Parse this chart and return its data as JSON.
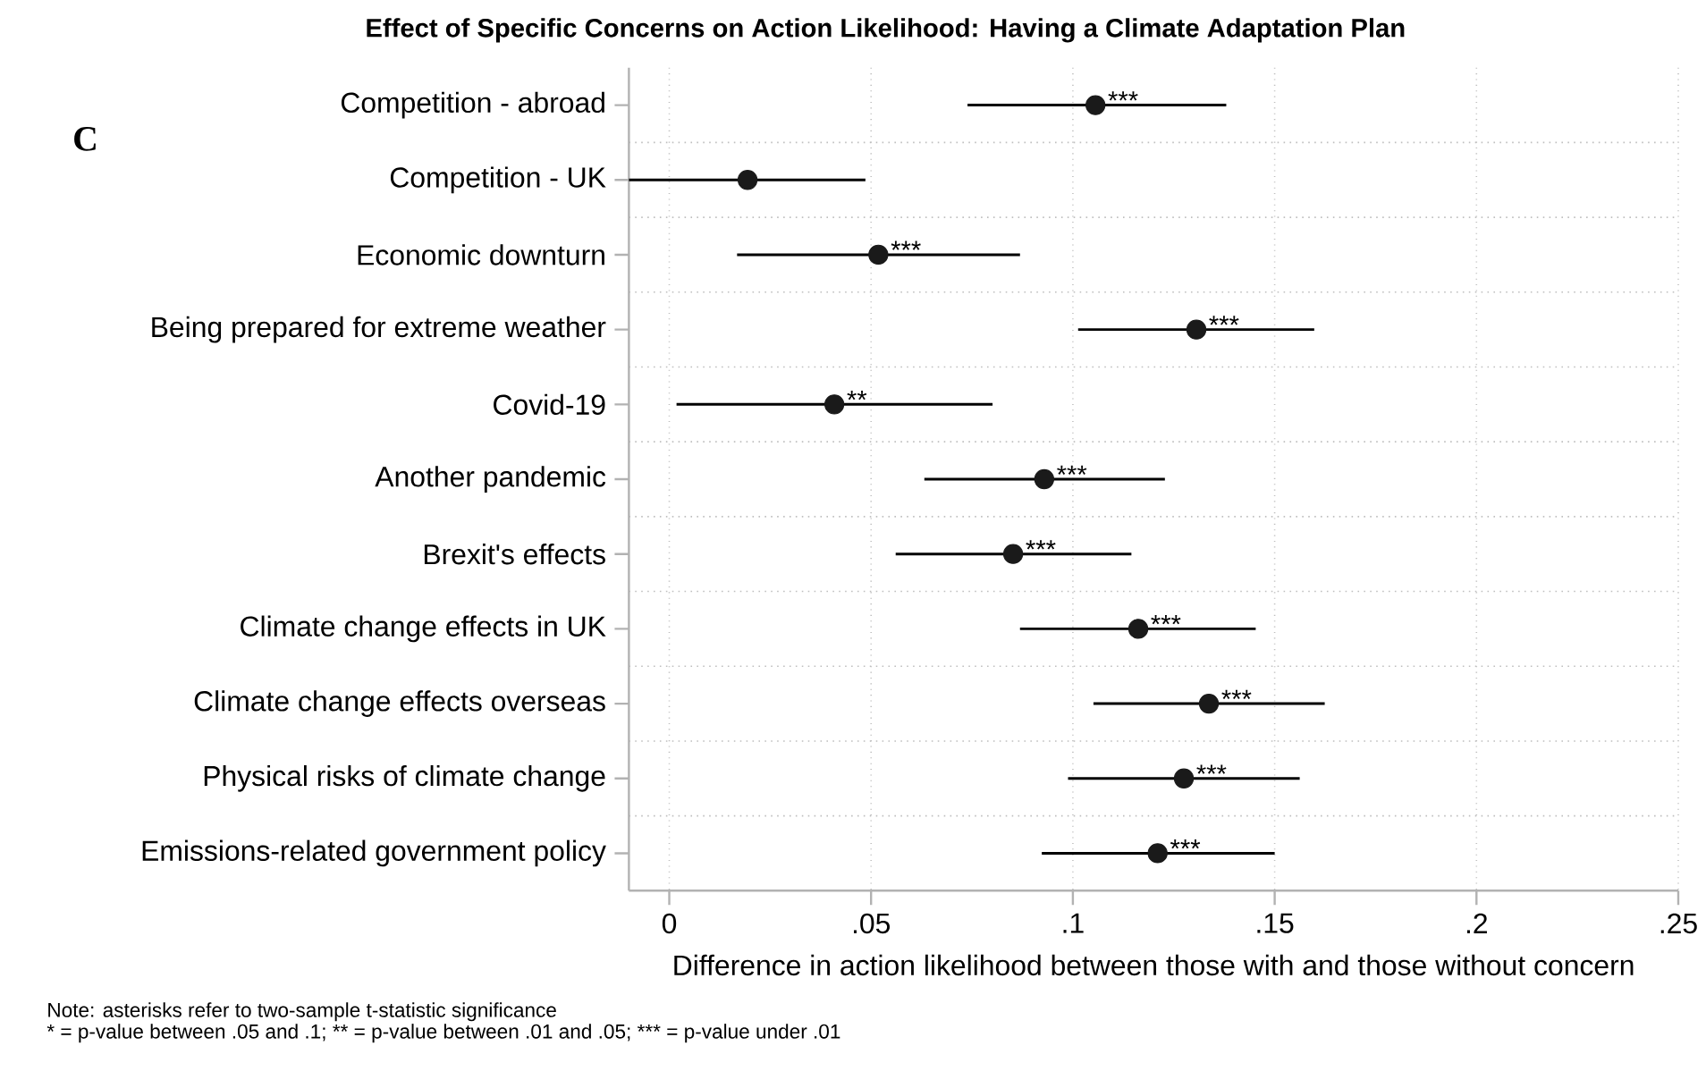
{
  "chart_data": {
    "type": "scatter",
    "orientation": "horizontal",
    "title": "Effect of Specific Concerns on Action Likelihood: Having a Climate Adaptation Plan",
    "xlabel": "Difference in action likelihood between those with and those without concern",
    "categories": [
      "Competition - abroad",
      "Competition - UK",
      "Economic downturn",
      "Being prepared for extreme weather",
      "Covid-19",
      "Another pandemic",
      "Brexit's effects",
      "Climate change effects in UK",
      "Climate change effects overseas",
      "Physical risks of climate change",
      "Emissions-related government policy"
    ],
    "values": [
      0.1056,
      0.0194,
      0.0518,
      0.1306,
      0.0409,
      0.0929,
      0.0852,
      0.1162,
      0.1337,
      0.1275,
      0.121
    ],
    "errors": [
      [
        0.0739,
        0.138
      ],
      [
        -0.01,
        0.0486
      ],
      [
        0.0168,
        0.0869
      ],
      [
        0.1013,
        0.1598
      ],
      [
        0.0018,
        0.0801
      ],
      [
        0.0632,
        0.1228
      ],
      [
        0.0561,
        0.1145
      ],
      [
        0.0869,
        0.1453
      ],
      [
        0.1051,
        0.1624
      ],
      [
        0.0988,
        0.1562
      ],
      [
        0.0923,
        0.15
      ]
    ],
    "value_labels": [
      "***",
      null,
      "***",
      "***",
      "**",
      "***",
      "***",
      "***",
      "***",
      "***",
      "***"
    ],
    "color": "#1a1a1a",
    "marker": "circle",
    "xlim": [
      -0.01,
      0.25
    ],
    "xticks": [
      0,
      {
        "value": 0.05,
        "label": ".05"
      },
      {
        "value": 0.1,
        "label": ".1"
      },
      {
        "value": 0.15,
        "label": ".15"
      },
      {
        "value": 0.2,
        "label": ".2"
      },
      {
        "value": 0.25,
        "label": ".25"
      }
    ],
    "grid": true,
    "annotations": [
      "C",
      "Note: asterisks refer to two-sample t-statistic significance",
      "* = p-value between .05 and .1; ** = p-value between .01 and .05; *** = p-value under .01"
    ]
  }
}
